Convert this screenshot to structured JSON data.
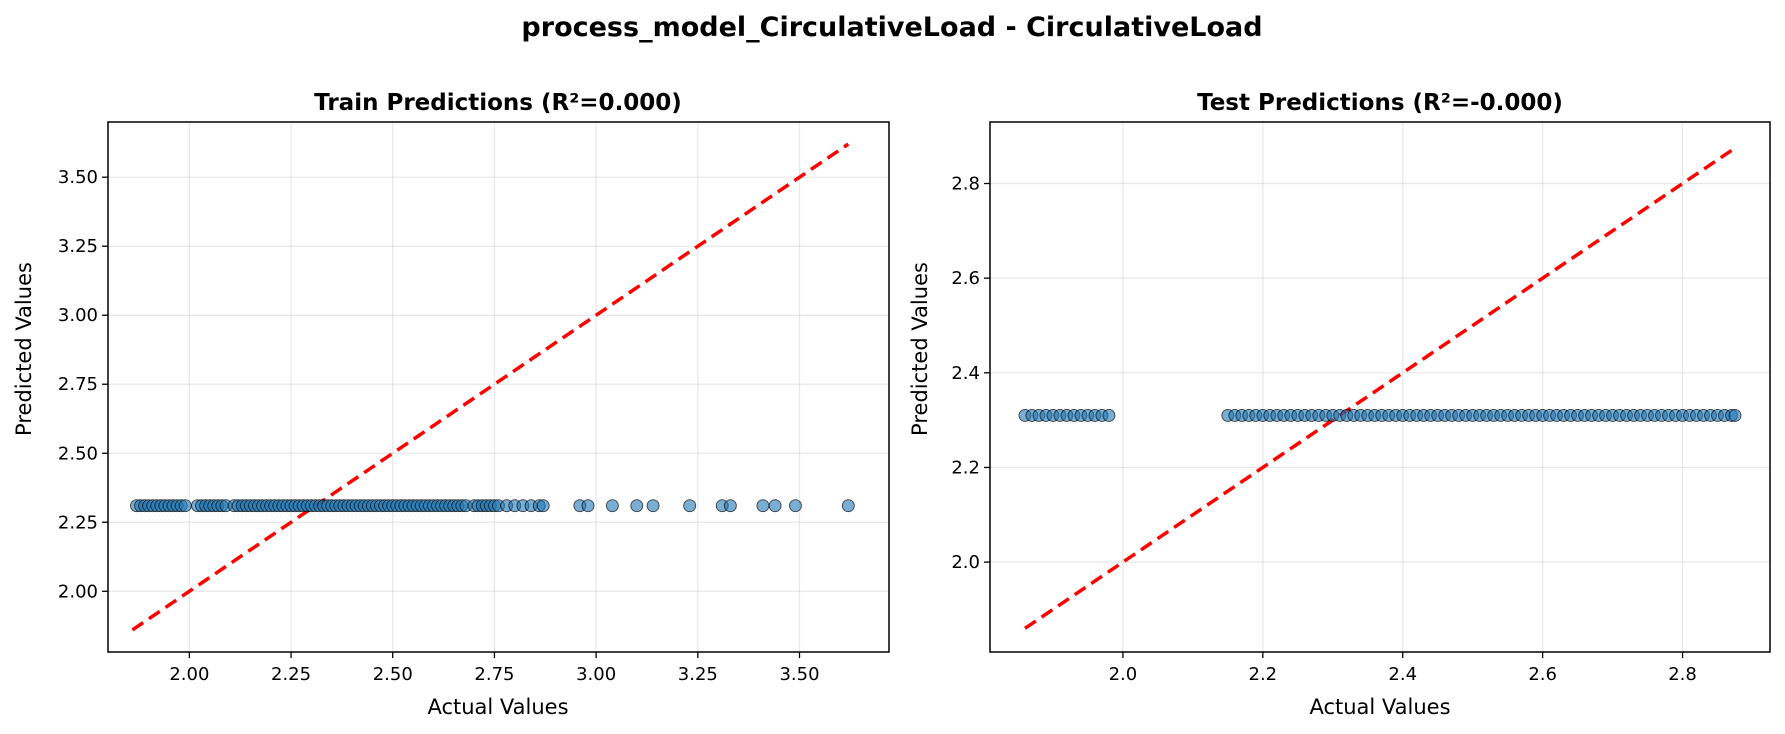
{
  "figure": {
    "suptitle": "process_model_CirculativeLoad - CirculativeLoad"
  },
  "chart_data": [
    {
      "type": "scatter",
      "title": "Train Predictions (R²=0.000)",
      "xlabel": "Actual Values",
      "ylabel": "Predicted Values",
      "xlim": [
        1.8,
        3.72
      ],
      "ylim": [
        1.78,
        3.7
      ],
      "xticks": [
        2.0,
        2.25,
        2.5,
        2.75,
        3.0,
        3.25,
        3.5
      ],
      "yticks": [
        2.0,
        2.25,
        2.5,
        2.75,
        3.0,
        3.25,
        3.5
      ],
      "tick_decimals": 2,
      "grid": true,
      "reference_line": {
        "style": "dashed",
        "color": "#ff0000",
        "from": [
          1.86,
          1.86
        ],
        "to": [
          3.62,
          3.62
        ]
      },
      "series": [
        {
          "color": "#1f77b4",
          "predicted_value": 2.31,
          "x": [
            1.87,
            1.88,
            1.89,
            1.9,
            1.91,
            1.92,
            1.93,
            1.94,
            1.95,
            1.96,
            1.97,
            1.98,
            1.99,
            2.02,
            2.03,
            2.04,
            2.05,
            2.06,
            2.07,
            2.08,
            2.09,
            2.11,
            2.12,
            2.13,
            2.14,
            2.15,
            2.16,
            2.17,
            2.18,
            2.19,
            2.2,
            2.21,
            2.22,
            2.23,
            2.24,
            2.25,
            2.26,
            2.27,
            2.28,
            2.29,
            2.3,
            2.31,
            2.32,
            2.33,
            2.34,
            2.35,
            2.36,
            2.37,
            2.38,
            2.39,
            2.4,
            2.41,
            2.42,
            2.43,
            2.44,
            2.45,
            2.46,
            2.47,
            2.48,
            2.49,
            2.5,
            2.51,
            2.52,
            2.53,
            2.54,
            2.55,
            2.56,
            2.57,
            2.58,
            2.59,
            2.6,
            2.61,
            2.62,
            2.63,
            2.64,
            2.65,
            2.66,
            2.67,
            2.68,
            2.7,
            2.71,
            2.72,
            2.73,
            2.74,
            2.75,
            2.76,
            2.78,
            2.8,
            2.82,
            2.84,
            2.86,
            2.87,
            2.96,
            2.98,
            3.04,
            3.1,
            3.14,
            3.23,
            3.31,
            3.33,
            3.41,
            3.44,
            3.49,
            3.62
          ]
        }
      ]
    },
    {
      "type": "scatter",
      "title": "Test Predictions (R²=-0.000)",
      "xlabel": "Actual Values",
      "ylabel": "Predicted Values",
      "xlim": [
        1.81,
        2.925
      ],
      "ylim": [
        1.81,
        2.93
      ],
      "xticks": [
        2.0,
        2.2,
        2.4,
        2.6,
        2.8
      ],
      "yticks": [
        2.0,
        2.2,
        2.4,
        2.6,
        2.8
      ],
      "tick_decimals": 1,
      "grid": true,
      "reference_line": {
        "style": "dashed",
        "color": "#ff0000",
        "from": [
          1.86,
          1.86
        ],
        "to": [
          2.875,
          2.875
        ]
      },
      "series": [
        {
          "color": "#1f77b4",
          "predicted_value": 2.31,
          "x": [
            1.86,
            1.87,
            1.88,
            1.89,
            1.9,
            1.91,
            1.92,
            1.93,
            1.94,
            1.95,
            1.96,
            1.97,
            1.98,
            2.15,
            2.16,
            2.17,
            2.18,
            2.19,
            2.2,
            2.21,
            2.22,
            2.23,
            2.24,
            2.25,
            2.26,
            2.27,
            2.28,
            2.29,
            2.3,
            2.31,
            2.32,
            2.33,
            2.34,
            2.35,
            2.36,
            2.37,
            2.38,
            2.39,
            2.4,
            2.41,
            2.42,
            2.43,
            2.44,
            2.45,
            2.46,
            2.47,
            2.48,
            2.49,
            2.5,
            2.51,
            2.52,
            2.53,
            2.54,
            2.55,
            2.56,
            2.57,
            2.58,
            2.59,
            2.6,
            2.61,
            2.62,
            2.63,
            2.64,
            2.65,
            2.66,
            2.67,
            2.68,
            2.69,
            2.7,
            2.71,
            2.72,
            2.73,
            2.74,
            2.75,
            2.76,
            2.77,
            2.78,
            2.79,
            2.8,
            2.81,
            2.82,
            2.83,
            2.84,
            2.85,
            2.86,
            2.87,
            2.875
          ]
        }
      ]
    }
  ]
}
